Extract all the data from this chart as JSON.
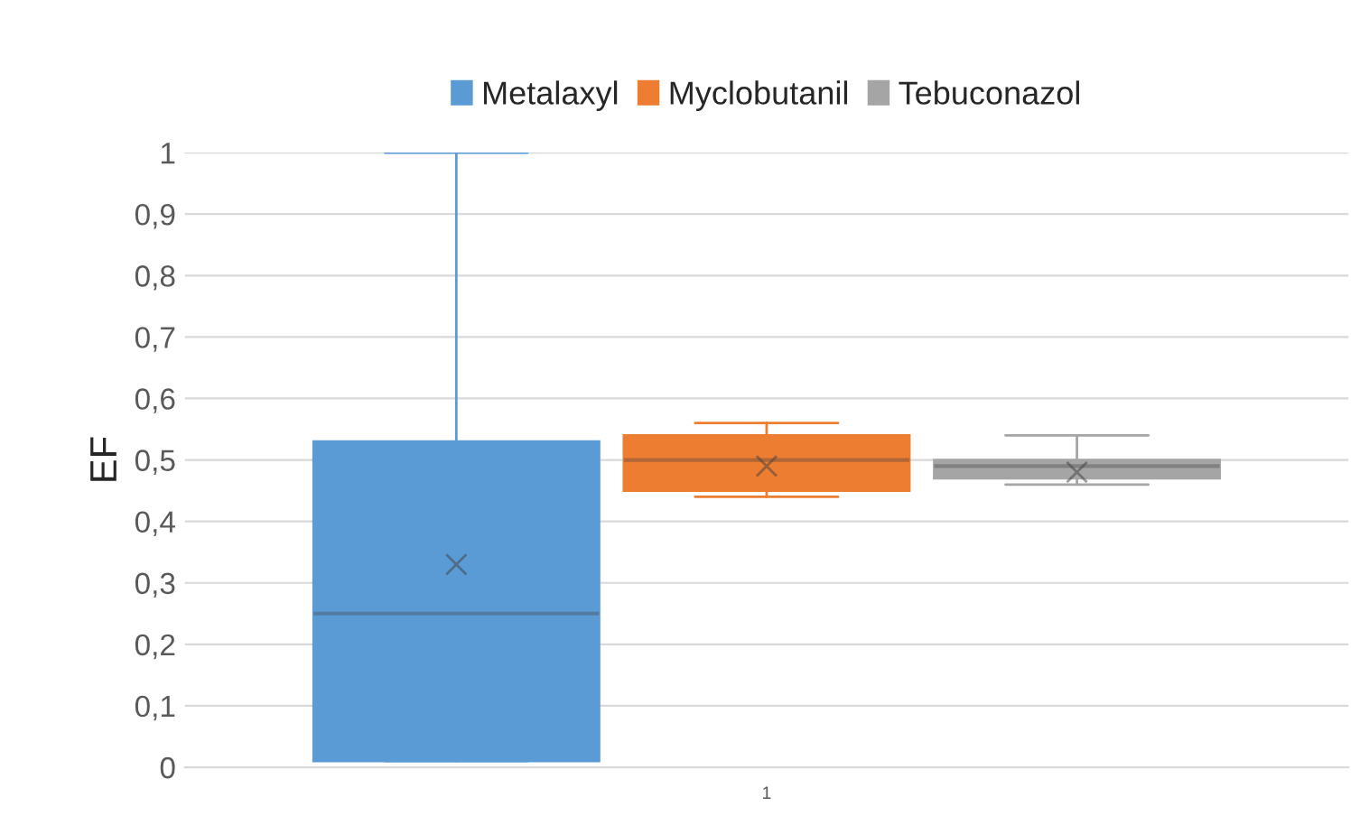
{
  "chart_data": {
    "type": "box",
    "ylabel": "EF",
    "categories": [
      "1"
    ],
    "series": [
      {
        "name": "Metalaxyl",
        "color": "#5b9bd5",
        "boxes": [
          {
            "low": 0.01,
            "q1": 0.01,
            "median": 0.25,
            "q3": 0.53,
            "high": 1.0,
            "mean": 0.33
          }
        ]
      },
      {
        "name": "Myclobutanil",
        "color": "#ed7d31",
        "boxes": [
          {
            "low": 0.44,
            "q1": 0.45,
            "median": 0.5,
            "q3": 0.54,
            "high": 0.56,
            "mean": 0.49
          }
        ]
      },
      {
        "name": "Tebuconazol",
        "color": "#a5a5a5",
        "boxes": [
          {
            "low": 0.46,
            "q1": 0.47,
            "median": 0.49,
            "q3": 0.5,
            "high": 0.54,
            "mean": 0.48
          }
        ]
      }
    ],
    "ylim": [
      0,
      1
    ],
    "yticks": [
      0,
      {
        "value": 0.1,
        "label": "0,1"
      },
      {
        "value": 0.2,
        "label": "0,2"
      },
      {
        "value": 0.3,
        "label": "0,3"
      },
      {
        "value": 0.4,
        "label": "0,4"
      },
      {
        "value": 0.5,
        "label": "0,5"
      },
      {
        "value": 0.6,
        "label": "0,6"
      },
      {
        "value": 0.7,
        "label": "0,7"
      },
      {
        "value": 0.8,
        "label": "0,8"
      },
      {
        "value": 0.9,
        "label": "0,9"
      },
      1
    ],
    "grid": "y",
    "legend": "top"
  }
}
